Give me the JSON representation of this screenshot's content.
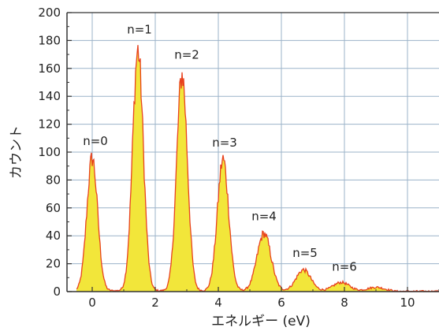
{
  "chart_data": {
    "type": "area",
    "title": "",
    "xlabel": "エネルギー (eV)",
    "ylabel": "カウント",
    "xlim": [
      -0.8,
      11.0
    ],
    "ylim": [
      0,
      200
    ],
    "x_ticks": [
      0,
      2,
      4,
      6,
      8,
      10
    ],
    "y_ticks": [
      0,
      20,
      40,
      60,
      80,
      100,
      120,
      140,
      160,
      180,
      200
    ],
    "grid": true,
    "colors": {
      "fill": "#f2e63a",
      "line": "#e8421e",
      "grid": "#9bb3c9",
      "axis": "#333333"
    },
    "peaks": [
      {
        "label": "n=0",
        "x": 0.0,
        "height": 95,
        "sigma": 0.17,
        "label_x": 0.1,
        "label_y": 105
      },
      {
        "label": "n=1",
        "x": 1.45,
        "height": 172,
        "sigma": 0.17,
        "label_x": 1.5,
        "label_y": 185
      },
      {
        "label": "n=2",
        "x": 2.85,
        "height": 155,
        "sigma": 0.17,
        "label_x": 3.0,
        "label_y": 167
      },
      {
        "label": "n=3",
        "x": 4.15,
        "height": 94,
        "sigma": 0.18,
        "label_x": 4.2,
        "label_y": 104
      },
      {
        "label": "n=4",
        "x": 5.45,
        "height": 41,
        "sigma": 0.22,
        "label_x": 5.45,
        "label_y": 51
      },
      {
        "label": "n=5",
        "x": 6.7,
        "height": 15,
        "sigma": 0.23,
        "label_x": 6.75,
        "label_y": 25
      },
      {
        "label": "n=6",
        "x": 7.9,
        "height": 6,
        "sigma": 0.25,
        "label_x": 8.0,
        "label_y": 15
      },
      {
        "label": "",
        "x": 9.0,
        "height": 2.5,
        "sigma": 0.25
      }
    ]
  }
}
